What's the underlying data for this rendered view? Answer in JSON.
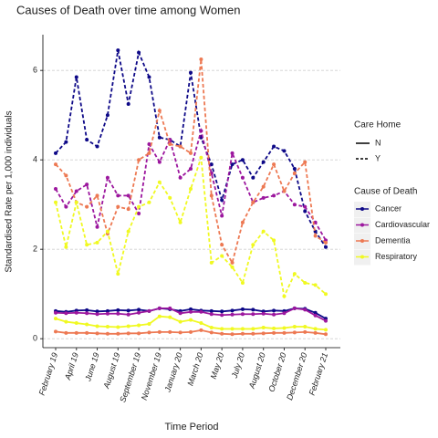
{
  "chart_data": {
    "type": "line",
    "title": "Causes of Death over time among Women",
    "x_label": "Time Period",
    "y_label": "Standardised Rate per 1,000 individuals",
    "categories": [
      "February 19",
      null,
      "April 19",
      null,
      "June 19",
      null,
      "August 19",
      null,
      "September 19",
      null,
      "November 19",
      null,
      "January 20",
      null,
      "March 20",
      null,
      "May 20",
      null,
      "July 20",
      null,
      "August 20",
      null,
      "October 20",
      null,
      "December 20",
      null,
      "February 21"
    ],
    "ylim": [
      -0.2,
      6.8
    ],
    "yticks": [
      0,
      2,
      4,
      6
    ],
    "grid": true,
    "legends": [
      {
        "title": "Care Home",
        "labels": [
          "N",
          "Y"
        ],
        "dashes": [
          false,
          true
        ]
      },
      {
        "title": "Cause of Death",
        "labels": [
          "Cancer",
          "Cardiovascular",
          "Dementia",
          "Respiratory"
        ],
        "colors": [
          "#0d0887",
          "#9c179e",
          "#ed7953",
          "#f0f921"
        ]
      }
    ],
    "series": [
      {
        "cause": "Cancer",
        "care_home": "N",
        "color": "#0d0887",
        "dashed": false,
        "values": [
          0.62,
          0.6,
          0.63,
          0.64,
          0.61,
          0.62,
          0.64,
          0.63,
          0.65,
          0.62,
          0.68,
          0.66,
          0.62,
          0.66,
          0.63,
          0.62,
          0.61,
          0.63,
          0.66,
          0.65,
          0.61,
          0.63,
          0.62,
          0.68,
          0.67,
          0.58,
          0.45
        ]
      },
      {
        "cause": "Cardiovascular",
        "care_home": "N",
        "color": "#9c179e",
        "dashed": false,
        "values": [
          0.58,
          0.57,
          0.58,
          0.57,
          0.55,
          0.56,
          0.56,
          0.54,
          0.58,
          0.62,
          0.68,
          0.68,
          0.57,
          0.6,
          0.6,
          0.55,
          0.53,
          0.54,
          0.55,
          0.55,
          0.56,
          0.54,
          0.57,
          0.68,
          0.65,
          0.52,
          0.4
        ]
      },
      {
        "cause": "Dementia",
        "care_home": "N",
        "color": "#ed7953",
        "dashed": false,
        "values": [
          0.16,
          0.13,
          0.13,
          0.13,
          0.12,
          0.11,
          0.11,
          0.12,
          0.12,
          0.14,
          0.15,
          0.15,
          0.14,
          0.15,
          0.19,
          0.14,
          0.11,
          0.1,
          0.11,
          0.11,
          0.12,
          0.13,
          0.13,
          0.14,
          0.15,
          0.13,
          0.1
        ]
      },
      {
        "cause": "Respiratory",
        "care_home": "N",
        "color": "#f0f921",
        "dashed": false,
        "values": [
          0.45,
          0.38,
          0.35,
          0.32,
          0.28,
          0.27,
          0.26,
          0.28,
          0.3,
          0.33,
          0.5,
          0.48,
          0.38,
          0.42,
          0.35,
          0.25,
          0.22,
          0.22,
          0.22,
          0.22,
          0.25,
          0.23,
          0.24,
          0.27,
          0.27,
          0.22,
          0.2
        ]
      },
      {
        "cause": "Cancer",
        "care_home": "Y",
        "color": "#0d0887",
        "dashed": true,
        "values": [
          4.15,
          4.4,
          5.85,
          4.45,
          4.3,
          5.0,
          6.45,
          5.25,
          6.4,
          5.85,
          4.5,
          4.45,
          4.3,
          5.95,
          4.5,
          3.9,
          3.1,
          3.9,
          4.0,
          3.6,
          3.95,
          4.3,
          4.2,
          3.8,
          2.85,
          2.4,
          2.05
        ]
      },
      {
        "cause": "Cardiovascular",
        "care_home": "Y",
        "color": "#9c179e",
        "dashed": true,
        "values": [
          3.35,
          2.95,
          3.3,
          3.45,
          2.5,
          3.6,
          3.2,
          3.2,
          2.8,
          4.35,
          3.95,
          4.45,
          3.6,
          3.8,
          4.65,
          3.7,
          2.75,
          4.15,
          3.6,
          3.05,
          3.15,
          3.2,
          3.3,
          3.0,
          2.95,
          2.6,
          2.2
        ]
      },
      {
        "cause": "Dementia",
        "care_home": "Y",
        "color": "#ed7953",
        "dashed": true,
        "values": [
          3.9,
          3.65,
          3.05,
          2.95,
          3.2,
          2.35,
          2.95,
          2.9,
          4.0,
          4.15,
          5.1,
          4.35,
          4.3,
          4.15,
          6.25,
          3.2,
          2.1,
          1.7,
          2.6,
          3.05,
          3.4,
          3.9,
          3.3,
          3.7,
          3.95,
          2.3,
          2.15
        ]
      },
      {
        "cause": "Respiratory",
        "care_home": "Y",
        "color": "#f0f921",
        "dashed": true,
        "values": [
          3.05,
          2.05,
          3.05,
          2.1,
          2.15,
          2.4,
          1.45,
          2.4,
          2.95,
          3.05,
          3.5,
          3.15,
          2.6,
          3.35,
          4.05,
          1.7,
          1.85,
          1.6,
          1.25,
          2.1,
          2.4,
          2.2,
          0.95,
          1.45,
          1.25,
          1.2,
          1.0
        ]
      }
    ]
  }
}
